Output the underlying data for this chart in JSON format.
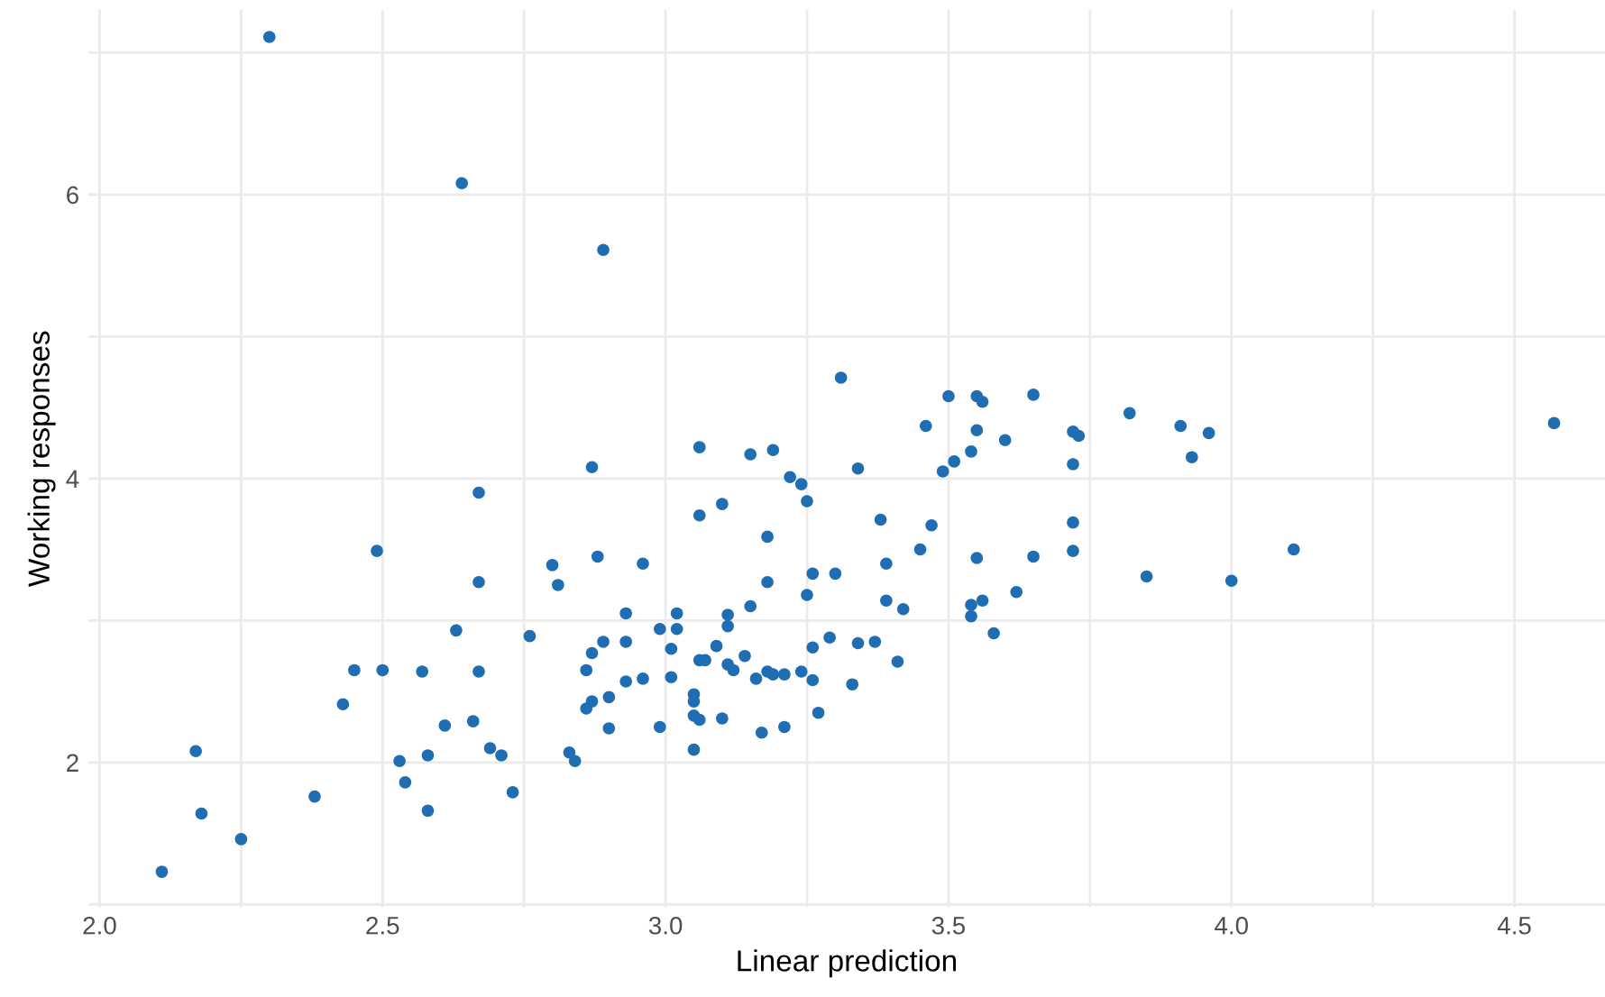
{
  "chart_data": {
    "type": "scatter",
    "xlabel": "Linear prediction",
    "ylabel": "Working responses",
    "xlim": [
      1.98,
      4.66
    ],
    "ylim": [
      0.98,
      7.3
    ],
    "xticks": [
      {
        "value": 2.0,
        "label": "2.0"
      },
      {
        "value": 2.25,
        "label": null
      },
      {
        "value": 2.5,
        "label": "2.5"
      },
      {
        "value": 2.75,
        "label": null
      },
      {
        "value": 3.0,
        "label": "3.0"
      },
      {
        "value": 3.25,
        "label": null
      },
      {
        "value": 3.5,
        "label": "3.5"
      },
      {
        "value": 3.75,
        "label": null
      },
      {
        "value": 4.0,
        "label": "4.0"
      },
      {
        "value": 4.25,
        "label": null
      },
      {
        "value": 4.5,
        "label": "4.5"
      }
    ],
    "yticks": [
      {
        "value": 1,
        "label": null
      },
      2,
      {
        "value": 3,
        "label": null
      },
      4,
      {
        "value": 5,
        "label": null
      },
      6,
      {
        "value": 7,
        "label": null
      }
    ],
    "grid": true,
    "marker": "circle",
    "series": [
      {
        "color": "#1f6db2",
        "x": [
          2.3,
          2.64,
          2.89,
          2.11,
          2.17,
          2.18,
          2.25,
          2.38,
          2.43,
          2.45,
          2.49,
          2.5,
          2.53,
          2.54,
          2.57,
          2.58,
          2.58,
          2.61,
          2.63,
          2.66,
          2.67,
          2.67,
          2.67,
          2.69,
          2.71,
          2.73,
          2.76,
          2.8,
          2.81,
          2.83,
          2.84,
          2.87,
          2.88,
          2.89,
          2.87,
          2.86,
          2.87,
          2.86,
          2.9,
          2.9,
          2.93,
          2.93,
          2.93,
          2.96,
          2.96,
          2.99,
          2.99,
          3.02,
          3.02,
          3.01,
          3.01,
          3.06,
          3.07,
          3.05,
          3.05,
          3.05,
          3.06,
          3.1,
          3.05,
          3.06,
          3.15,
          3.19,
          3.22,
          3.24,
          3.25,
          3.31,
          3.34,
          3.38,
          3.39,
          3.39,
          3.42,
          3.37,
          3.41,
          3.34,
          3.33,
          3.27,
          3.29,
          3.26,
          3.26,
          3.25,
          3.26,
          3.3,
          3.18,
          3.18,
          3.1,
          3.06,
          3.15,
          3.11,
          3.11,
          3.14,
          3.09,
          3.11,
          3.12,
          3.16,
          3.18,
          3.19,
          3.21,
          3.24,
          3.17,
          3.21,
          3.55,
          3.5,
          3.56,
          3.46,
          3.55,
          3.6,
          3.54,
          3.51,
          3.49,
          3.47,
          3.45,
          3.55,
          3.54,
          3.56,
          3.54,
          3.58,
          3.65,
          3.82,
          3.91,
          3.96,
          3.93,
          3.72,
          3.73,
          3.72,
          3.72,
          3.72,
          3.65,
          3.62,
          3.85,
          4.0,
          4.11,
          4.57
        ],
        "values": [
          7.11,
          6.08,
          5.61,
          1.23,
          2.08,
          1.64,
          1.46,
          1.76,
          2.41,
          2.65,
          3.49,
          2.65,
          2.01,
          1.86,
          2.64,
          2.05,
          1.66,
          2.26,
          2.93,
          2.29,
          3.9,
          3.27,
          2.64,
          2.1,
          2.05,
          1.79,
          2.89,
          3.39,
          3.25,
          2.07,
          2.01,
          4.08,
          3.45,
          2.85,
          2.77,
          2.65,
          2.43,
          2.38,
          2.46,
          2.24,
          3.05,
          2.85,
          2.57,
          3.4,
          2.59,
          2.94,
          2.25,
          3.05,
          2.94,
          2.8,
          2.6,
          2.72,
          2.72,
          2.48,
          2.43,
          2.33,
          2.3,
          2.31,
          2.09,
          4.22,
          4.17,
          4.2,
          4.01,
          3.96,
          3.84,
          4.71,
          4.07,
          3.71,
          3.4,
          3.14,
          3.08,
          2.85,
          2.71,
          2.84,
          2.55,
          2.35,
          2.88,
          2.81,
          2.58,
          3.18,
          3.33,
          3.33,
          3.27,
          3.59,
          3.82,
          3.74,
          3.1,
          3.04,
          2.96,
          2.75,
          2.82,
          2.69,
          2.65,
          2.59,
          2.64,
          2.62,
          2.62,
          2.64,
          2.21,
          2.25,
          4.58,
          4.58,
          4.54,
          4.37,
          4.34,
          4.27,
          4.19,
          4.12,
          4.05,
          3.67,
          3.5,
          3.44,
          3.11,
          3.14,
          3.03,
          2.91,
          4.59,
          4.46,
          4.37,
          4.32,
          4.15,
          4.33,
          4.3,
          4.1,
          3.69,
          3.49,
          3.45,
          3.2,
          3.31,
          3.28,
          3.5,
          4.39
        ]
      }
    ]
  }
}
